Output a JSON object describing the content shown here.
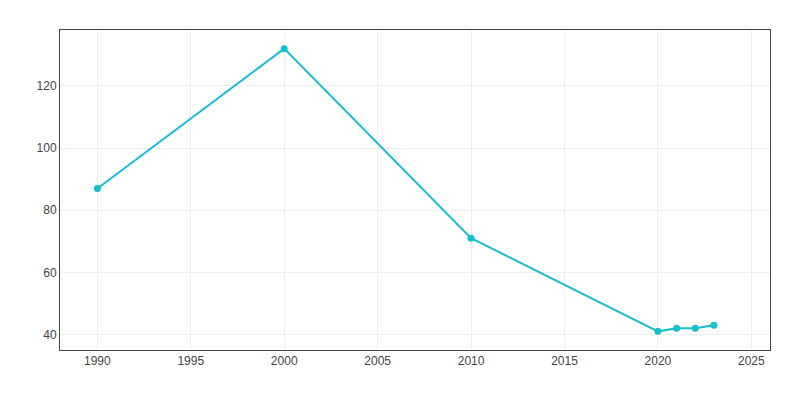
{
  "chart_data": {
    "type": "line",
    "x": [
      1990,
      2000,
      2010,
      2020,
      2021,
      2022,
      2023
    ],
    "values": [
      87,
      132,
      71,
      41,
      42,
      42,
      43
    ],
    "color": "#17becf",
    "marker": "circle",
    "xlim": [
      1988,
      2026
    ],
    "ylim": [
      35,
      138
    ],
    "xticks": [
      1990,
      1995,
      2000,
      2005,
      2010,
      2015,
      2020,
      2025
    ],
    "yticks": [
      40,
      60,
      80,
      100,
      120
    ],
    "grid": true
  }
}
